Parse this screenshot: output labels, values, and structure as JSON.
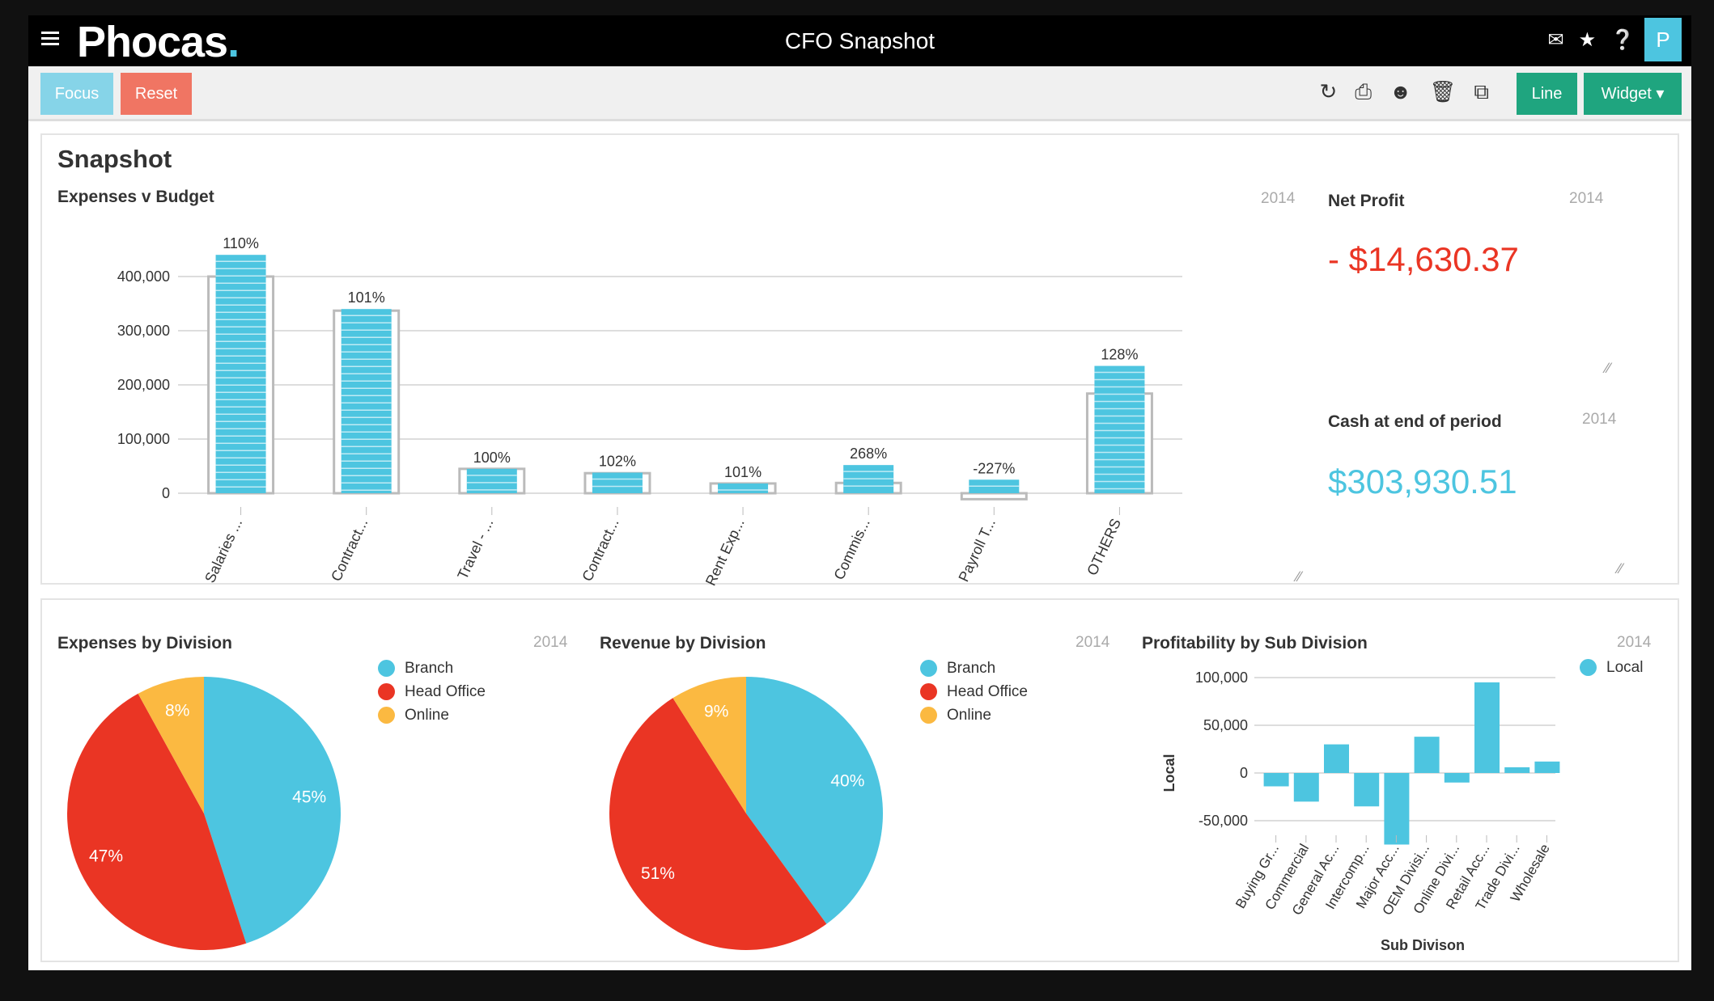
{
  "header": {
    "logo": "Phocas",
    "title": "CFO Snapshot",
    "avatar": "P",
    "icons": [
      "menu-icon",
      "chat-icon",
      "star-icon",
      "help-icon"
    ]
  },
  "toolbar": {
    "focus": "Focus",
    "reset": "Reset",
    "line": "Line",
    "widget": "Widget ▾",
    "icons": [
      "refresh-icon",
      "print-icon",
      "share-users-icon",
      "trash-icon",
      "copy-icon"
    ]
  },
  "colors": {
    "blue": "#4dc5e0",
    "red": "#ea3524",
    "orange": "#fbb941",
    "green": "#1fa57f",
    "focus": "#86d4e8",
    "reset": "#f07563"
  },
  "snapshot": {
    "title": "Snapshot",
    "net_profit": {
      "label": "Net Profit",
      "year": "2014",
      "value": "- $14,630.37"
    },
    "cash": {
      "label": "Cash at end of period",
      "year": "2014",
      "value": "$303,930.51"
    },
    "expenses_year": "2014"
  },
  "bottom": {
    "expenses_title": "Expenses by Division",
    "expenses_year": "2014",
    "revenue_title": "Revenue by Division",
    "revenue_year": "2014",
    "profit_title": "Profitability by Sub Division",
    "profit_year": "2014"
  },
  "chart_data": [
    {
      "type": "bar",
      "title": "Expenses v Budget",
      "categories": [
        "Salaries ...",
        "Contract...",
        "Travel - ...",
        "Contract...",
        "Rent Exp...",
        "Commis...",
        "Payroll T...",
        "OTHERS"
      ],
      "series": [
        {
          "values": [
            440000,
            340000,
            45000,
            38000,
            18000,
            52000,
            25000,
            235000
          ]
        },
        {
          "values": [
            400000,
            337000,
            45000,
            37000,
            18000,
            19000,
            -11000,
            184000
          ]
        }
      ],
      "data_labels": [
        "110%",
        "101%",
        "100%",
        "102%",
        "101%",
        "268%",
        "-227%",
        "128%"
      ],
      "yticks": [
        "0",
        "100,000",
        "200,000",
        "300,000",
        "400,000"
      ],
      "ylim": [
        0,
        450000
      ],
      "grid": true
    },
    {
      "type": "pie",
      "title": "Expenses by Division",
      "labels": [
        "Branch",
        "Head Office",
        "Online"
      ],
      "values": [
        45,
        47,
        8
      ],
      "data_labels": [
        "45%",
        "47%",
        "8%"
      ],
      "legend": "right"
    },
    {
      "type": "pie",
      "title": "Revenue by Division",
      "labels": [
        "Branch",
        "Head Office",
        "Online"
      ],
      "values": [
        40,
        51,
        9
      ],
      "data_labels": [
        "40%",
        "51%",
        "9%"
      ],
      "legend": "right"
    },
    {
      "type": "bar",
      "title": "Profitability by Sub Division",
      "categories": [
        "Buying Gr...",
        "Commercial",
        "General Ac...",
        "Intercomp...",
        "Major Acc...",
        "OEM Divisi...",
        "Online Divi...",
        "Retail Acc...",
        "Trade Divi...",
        "Wholesale"
      ],
      "series": [
        {
          "name": "Local",
          "values": [
            -14000,
            -30000,
            30000,
            -35000,
            -75000,
            38000,
            -10000,
            95000,
            6000,
            12000
          ]
        }
      ],
      "xlabel": "Sub Divison",
      "ylabel": "Local",
      "yticks": [
        "-50,000",
        "0",
        "50,000",
        "100,000"
      ],
      "ylim": [
        -75000,
        100000
      ],
      "grid": true,
      "legend": "top-right"
    }
  ]
}
